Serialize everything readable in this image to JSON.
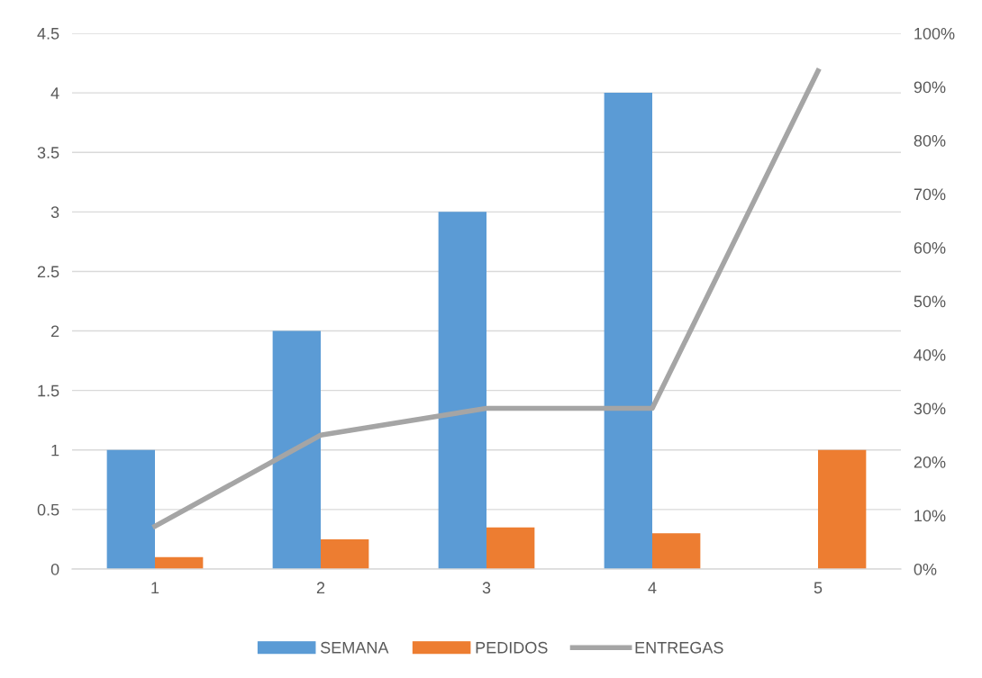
{
  "chart_data": {
    "type": "bar",
    "categories": [
      "1",
      "2",
      "3",
      "4",
      "5"
    ],
    "series": [
      {
        "name": "SEMANA",
        "color": "#5b9bd5",
        "values": [
          1,
          2,
          3,
          4,
          null
        ]
      },
      {
        "name": "PEDIDOS",
        "color": "#ed7d31",
        "values": [
          0.1,
          0.25,
          0.35,
          0.3,
          1
        ]
      },
      {
        "name": "ENTREGAS",
        "type": "line",
        "axis": "y2",
        "color": "#a5a5a5",
        "values": [
          8,
          25,
          30,
          30,
          93
        ]
      }
    ],
    "ylim": [
      0,
      4.5
    ],
    "yticks": [
      0,
      0.5,
      1,
      1.5,
      2,
      2.5,
      3,
      3.5,
      4,
      4.5
    ],
    "y2lim": [
      0,
      100
    ],
    "y2ticks": [
      {
        "value": 0,
        "label": "0%"
      },
      {
        "value": 10,
        "label": "10%"
      },
      {
        "value": 20,
        "label": "20%"
      },
      {
        "value": 30,
        "label": "30%"
      },
      {
        "value": 40,
        "label": "40%"
      },
      {
        "value": 50,
        "label": "50%"
      },
      {
        "value": 60,
        "label": "60%"
      },
      {
        "value": 70,
        "label": "70%"
      },
      {
        "value": 80,
        "label": "80%"
      },
      {
        "value": 90,
        "label": "90%"
      },
      {
        "value": 100,
        "label": "100%"
      }
    ],
    "grid": "y",
    "legend": "bottom",
    "marker": "none",
    "line_style": "solid"
  }
}
